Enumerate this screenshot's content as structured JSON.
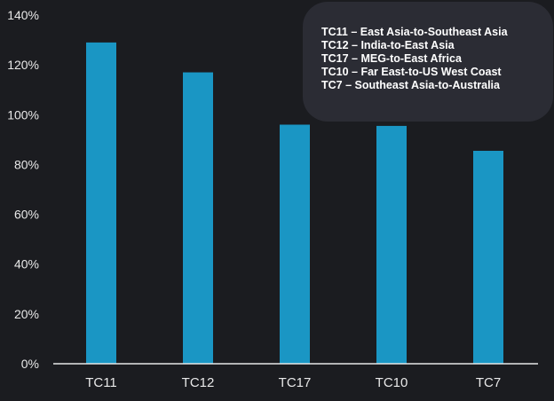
{
  "chart_data": {
    "type": "bar",
    "categories": [
      "TC11",
      "TC12",
      "TC17",
      "TC10",
      "TC7"
    ],
    "values": [
      129,
      117,
      96,
      95.5,
      85.5
    ],
    "ylim": [
      0,
      140
    ],
    "yticks": [
      0,
      20,
      40,
      60,
      80,
      100,
      120,
      140
    ],
    "ytick_labels": [
      "0%",
      "20%",
      "40%",
      "60%",
      "80%",
      "100%",
      "120%",
      "140%"
    ],
    "title": "",
    "xlabel": "",
    "ylabel": "",
    "grid": false,
    "legend_placement": "top-right",
    "legend_entries": [
      "TC11 – East Asia-to-Southeast Asia",
      "TC12 – India-to-East Asia",
      "TC17 – MEG-to-East Africa",
      "TC10 – Far East-to-US West Coast",
      "TC7 – Southeast Asia-to-Australia"
    ],
    "colors": {
      "bar": "#1a96c4",
      "background": "#1b1c20",
      "axis": "#e8e8e8",
      "legend_background": "#2b2c34",
      "text": "#e8e8e8"
    }
  }
}
